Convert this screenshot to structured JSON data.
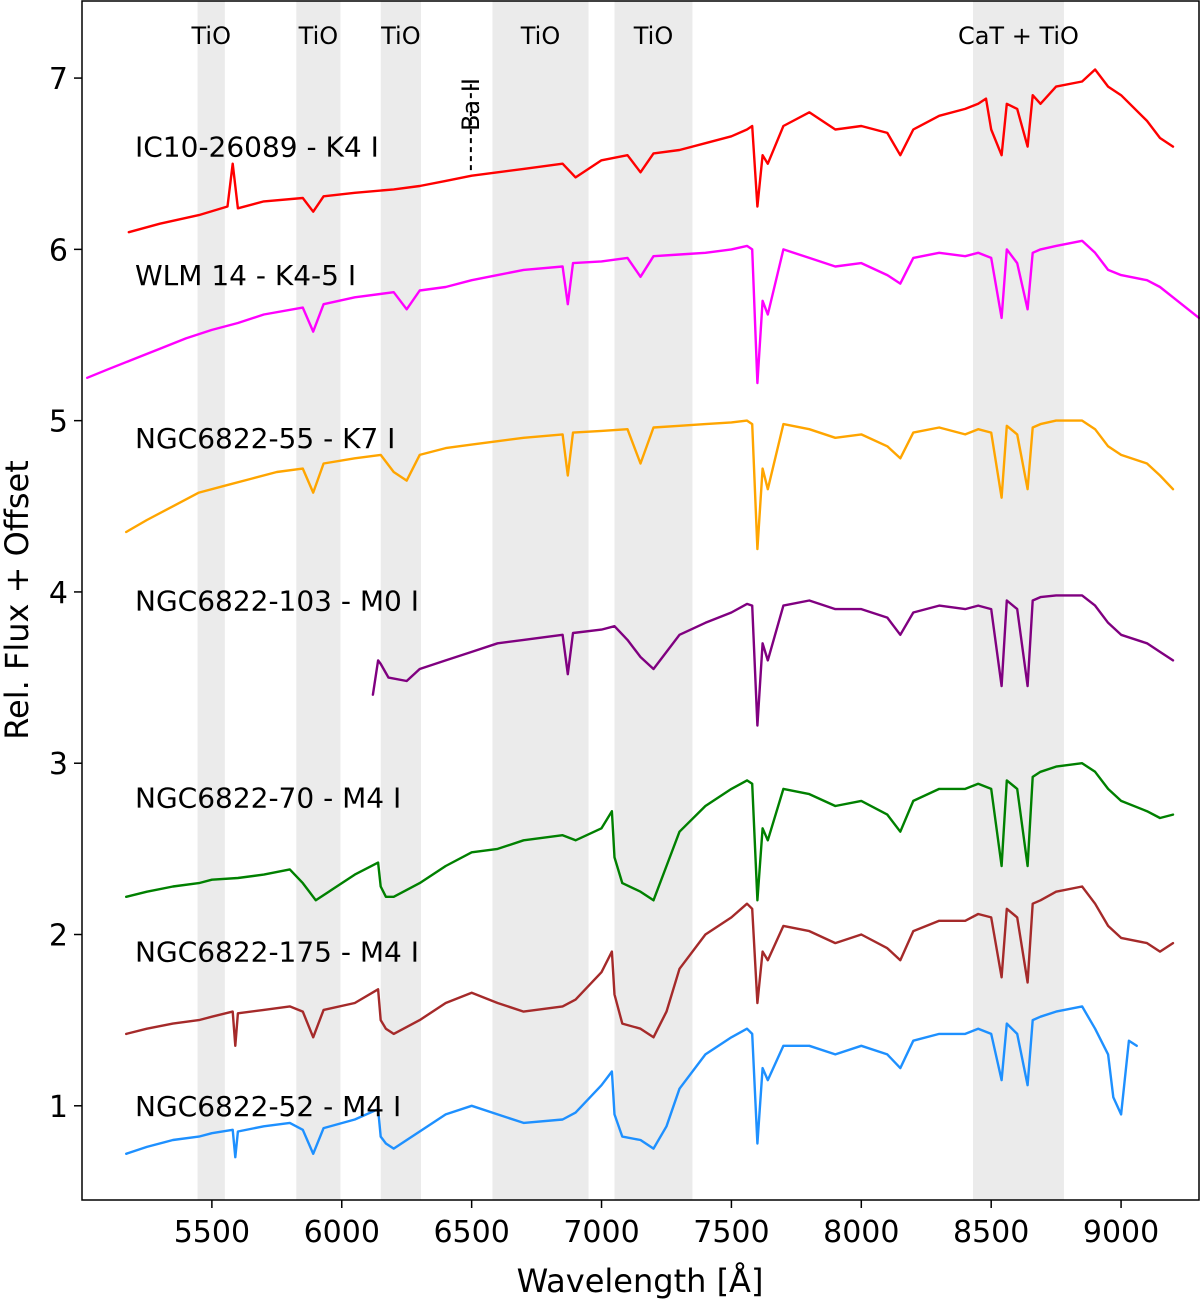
{
  "chart_data": {
    "type": "line",
    "title": "",
    "xlabel": "Wavelength [Å]",
    "ylabel": "Rel. Flux + Offset",
    "xlim": [
      5000,
      9300
    ],
    "ylim": [
      0.45,
      7.45
    ],
    "xticks": [
      5500,
      6000,
      6500,
      7000,
      7500,
      8000,
      8500,
      9000
    ],
    "yticks": [
      1,
      2,
      3,
      4,
      5,
      6,
      7
    ],
    "grid": false,
    "legend": "none",
    "bands": [
      {
        "label": "TiO",
        "x0": 5445,
        "x1": 5550
      },
      {
        "label": "TiO",
        "x0": 5825,
        "x1": 5995
      },
      {
        "label": "TiO",
        "x0": 6150,
        "x1": 6305
      },
      {
        "label": "TiO",
        "x0": 6580,
        "x1": 6950
      },
      {
        "label": "TiO",
        "x0": 7050,
        "x1": 7350
      },
      {
        "label": "CaT + TiO",
        "x0": 8430,
        "x1": 8780
      }
    ],
    "annotations": [
      {
        "text": "Ba II",
        "x": 6497,
        "y_top": 7.0,
        "y_bottom": 6.45
      }
    ],
    "series": [
      {
        "name": "IC10-26089 - K4 I",
        "color": "#ff0000",
        "label_y": 6.6,
        "x": [
          5180,
          5300,
          5450,
          5560,
          5580,
          5600,
          5700,
          5850,
          5890,
          5930,
          6050,
          6200,
          6300,
          6400,
          6500,
          6600,
          6700,
          6850,
          6900,
          7000,
          7100,
          7150,
          7200,
          7300,
          7400,
          7500,
          7560,
          7580,
          7600,
          7620,
          7640,
          7700,
          7800,
          7900,
          8000,
          8100,
          8150,
          8200,
          8300,
          8400,
          8450,
          8480,
          8500,
          8540,
          8560,
          8600,
          8640,
          8660,
          8690,
          8750,
          8850,
          8900,
          8950,
          9000,
          9100,
          9150,
          9200
        ],
        "y": [
          6.1,
          6.15,
          6.2,
          6.25,
          6.5,
          6.24,
          6.28,
          6.3,
          6.22,
          6.31,
          6.33,
          6.35,
          6.37,
          6.4,
          6.43,
          6.45,
          6.47,
          6.5,
          6.42,
          6.52,
          6.55,
          6.45,
          6.56,
          6.58,
          6.62,
          6.66,
          6.7,
          6.72,
          6.25,
          6.55,
          6.5,
          6.72,
          6.8,
          6.7,
          6.72,
          6.68,
          6.55,
          6.7,
          6.78,
          6.82,
          6.85,
          6.88,
          6.7,
          6.55,
          6.85,
          6.82,
          6.6,
          6.9,
          6.85,
          6.95,
          6.98,
          7.05,
          6.95,
          6.9,
          6.75,
          6.65,
          6.6
        ]
      },
      {
        "name": "WLM 14 - K4-5 I",
        "color": "#ff00ff",
        "label_y": 5.85,
        "x": [
          5020,
          5100,
          5200,
          5300,
          5400,
          5500,
          5600,
          5700,
          5850,
          5890,
          5930,
          6050,
          6200,
          6250,
          6300,
          6400,
          6500,
          6600,
          6700,
          6850,
          6870,
          6890,
          7000,
          7100,
          7150,
          7200,
          7300,
          7400,
          7500,
          7560,
          7580,
          7600,
          7620,
          7640,
          7700,
          7800,
          7900,
          8000,
          8100,
          8150,
          8200,
          8300,
          8400,
          8450,
          8500,
          8540,
          8560,
          8600,
          8640,
          8660,
          8690,
          8750,
          8850,
          8900,
          8950,
          9000,
          9100,
          9150,
          9200,
          9300
        ],
        "y": [
          5.25,
          5.3,
          5.36,
          5.42,
          5.48,
          5.53,
          5.57,
          5.62,
          5.66,
          5.52,
          5.68,
          5.72,
          5.75,
          5.65,
          5.76,
          5.78,
          5.82,
          5.85,
          5.88,
          5.9,
          5.68,
          5.92,
          5.93,
          5.95,
          5.84,
          5.96,
          5.97,
          5.98,
          6.0,
          6.02,
          6.0,
          5.22,
          5.7,
          5.62,
          6.0,
          5.95,
          5.9,
          5.92,
          5.85,
          5.8,
          5.95,
          5.98,
          5.96,
          5.98,
          5.95,
          5.6,
          6.0,
          5.92,
          5.65,
          5.98,
          6.0,
          6.02,
          6.05,
          5.98,
          5.88,
          5.85,
          5.82,
          5.78,
          5.72,
          5.6
        ]
      },
      {
        "name": "NGC6822-55 - K7 I",
        "color": "#ffa500",
        "label_y": 4.9,
        "x": [
          5170,
          5250,
          5350,
          5450,
          5550,
          5650,
          5750,
          5850,
          5890,
          5930,
          6050,
          6150,
          6200,
          6250,
          6300,
          6400,
          6500,
          6600,
          6700,
          6850,
          6870,
          6890,
          7000,
          7100,
          7150,
          7200,
          7300,
          7400,
          7500,
          7560,
          7580,
          7600,
          7620,
          7640,
          7700,
          7800,
          7900,
          8000,
          8100,
          8150,
          8200,
          8300,
          8400,
          8450,
          8500,
          8540,
          8560,
          8600,
          8640,
          8660,
          8690,
          8750,
          8850,
          8900,
          8950,
          9000,
          9100,
          9150,
          9200
        ],
        "y": [
          4.35,
          4.42,
          4.5,
          4.58,
          4.62,
          4.66,
          4.7,
          4.72,
          4.58,
          4.75,
          4.78,
          4.8,
          4.7,
          4.65,
          4.8,
          4.84,
          4.86,
          4.88,
          4.9,
          4.92,
          4.68,
          4.93,
          4.94,
          4.95,
          4.75,
          4.96,
          4.97,
          4.98,
          4.99,
          5.0,
          4.98,
          4.25,
          4.72,
          4.6,
          4.98,
          4.95,
          4.9,
          4.92,
          4.85,
          4.78,
          4.93,
          4.96,
          4.92,
          4.95,
          4.93,
          4.55,
          4.97,
          4.92,
          4.6,
          4.96,
          4.98,
          5.0,
          5.0,
          4.95,
          4.85,
          4.8,
          4.75,
          4.68,
          4.6
        ]
      },
      {
        "name": "NGC6822-103 - M0 I",
        "color": "#800080",
        "label_y": 3.95,
        "x": [
          6120,
          6140,
          6150,
          6180,
          6250,
          6300,
          6400,
          6500,
          6600,
          6700,
          6850,
          6870,
          6890,
          7000,
          7050,
          7100,
          7150,
          7200,
          7300,
          7400,
          7500,
          7560,
          7580,
          7600,
          7620,
          7640,
          7700,
          7800,
          7900,
          8000,
          8100,
          8150,
          8200,
          8300,
          8400,
          8450,
          8500,
          8540,
          8560,
          8600,
          8640,
          8660,
          8690,
          8750,
          8850,
          8900,
          8950,
          9000,
          9100,
          9150,
          9200
        ],
        "y": [
          3.4,
          3.6,
          3.58,
          3.5,
          3.48,
          3.55,
          3.6,
          3.65,
          3.7,
          3.72,
          3.75,
          3.52,
          3.76,
          3.78,
          3.8,
          3.72,
          3.62,
          3.55,
          3.75,
          3.82,
          3.88,
          3.93,
          3.92,
          3.22,
          3.7,
          3.6,
          3.92,
          3.95,
          3.9,
          3.9,
          3.85,
          3.75,
          3.88,
          3.92,
          3.9,
          3.92,
          3.9,
          3.45,
          3.95,
          3.9,
          3.45,
          3.95,
          3.97,
          3.98,
          3.98,
          3.92,
          3.82,
          3.75,
          3.7,
          3.65,
          3.6
        ]
      },
      {
        "name": "NGC6822-70 - M4 I",
        "color": "#008000",
        "label_y": 2.8,
        "x": [
          5170,
          5250,
          5350,
          5450,
          5500,
          5600,
          5700,
          5800,
          5850,
          5900,
          5950,
          6050,
          6140,
          6150,
          6170,
          6200,
          6300,
          6400,
          6500,
          6600,
          6700,
          6850,
          6900,
          7000,
          7040,
          7050,
          7080,
          7150,
          7200,
          7250,
          7300,
          7400,
          7500,
          7560,
          7580,
          7600,
          7620,
          7640,
          7700,
          7800,
          7900,
          8000,
          8100,
          8150,
          8200,
          8300,
          8400,
          8450,
          8500,
          8540,
          8560,
          8600,
          8640,
          8660,
          8690,
          8750,
          8850,
          8900,
          8950,
          9000,
          9100,
          9150,
          9200
        ],
        "y": [
          2.22,
          2.25,
          2.28,
          2.3,
          2.32,
          2.33,
          2.35,
          2.38,
          2.3,
          2.2,
          2.25,
          2.35,
          2.42,
          2.28,
          2.22,
          2.22,
          2.3,
          2.4,
          2.48,
          2.5,
          2.55,
          2.58,
          2.55,
          2.62,
          2.72,
          2.45,
          2.3,
          2.25,
          2.2,
          2.4,
          2.6,
          2.75,
          2.85,
          2.9,
          2.88,
          2.2,
          2.62,
          2.55,
          2.85,
          2.82,
          2.75,
          2.78,
          2.7,
          2.6,
          2.78,
          2.85,
          2.85,
          2.88,
          2.85,
          2.4,
          2.9,
          2.85,
          2.4,
          2.92,
          2.95,
          2.98,
          3.0,
          2.95,
          2.85,
          2.78,
          2.72,
          2.68,
          2.7
        ]
      },
      {
        "name": "NGC6822-175 - M4 I",
        "color": "#a52a2a",
        "label_y": 1.9,
        "x": [
          5170,
          5250,
          5350,
          5450,
          5500,
          5580,
          5590,
          5600,
          5700,
          5800,
          5850,
          5890,
          5930,
          6050,
          6140,
          6150,
          6170,
          6200,
          6300,
          6400,
          6500,
          6600,
          6700,
          6850,
          6900,
          7000,
          7040,
          7050,
          7080,
          7150,
          7200,
          7250,
          7300,
          7400,
          7500,
          7560,
          7580,
          7600,
          7620,
          7640,
          7700,
          7800,
          7900,
          8000,
          8100,
          8150,
          8200,
          8300,
          8400,
          8450,
          8500,
          8540,
          8560,
          8600,
          8640,
          8660,
          8690,
          8750,
          8850,
          8900,
          8950,
          9000,
          9100,
          9150,
          9200
        ],
        "y": [
          1.42,
          1.45,
          1.48,
          1.5,
          1.52,
          1.55,
          1.35,
          1.54,
          1.56,
          1.58,
          1.55,
          1.4,
          1.56,
          1.6,
          1.68,
          1.5,
          1.45,
          1.42,
          1.5,
          1.6,
          1.66,
          1.6,
          1.55,
          1.58,
          1.62,
          1.78,
          1.9,
          1.65,
          1.48,
          1.45,
          1.4,
          1.55,
          1.8,
          2.0,
          2.1,
          2.18,
          2.15,
          1.6,
          1.9,
          1.85,
          2.05,
          2.02,
          1.95,
          2.0,
          1.92,
          1.85,
          2.02,
          2.08,
          2.08,
          2.12,
          2.1,
          1.75,
          2.15,
          2.1,
          1.72,
          2.18,
          2.2,
          2.25,
          2.28,
          2.18,
          2.05,
          1.98,
          1.95,
          1.9,
          1.95
        ]
      },
      {
        "name": "NGC6822-52 - M4 I",
        "color": "#1e90ff",
        "label_y": 1.0,
        "x": [
          5170,
          5250,
          5350,
          5450,
          5500,
          5580,
          5590,
          5600,
          5700,
          5800,
          5850,
          5890,
          5930,
          6050,
          6140,
          6150,
          6170,
          6200,
          6300,
          6400,
          6500,
          6600,
          6700,
          6850,
          6900,
          7000,
          7040,
          7050,
          7080,
          7150,
          7200,
          7250,
          7300,
          7400,
          7500,
          7560,
          7580,
          7600,
          7620,
          7640,
          7700,
          7800,
          7900,
          8000,
          8100,
          8150,
          8200,
          8300,
          8400,
          8450,
          8500,
          8540,
          8560,
          8600,
          8640,
          8660,
          8690,
          8750,
          8850,
          8900,
          8950,
          8970,
          9000,
          9030,
          9060
        ],
        "y": [
          0.72,
          0.76,
          0.8,
          0.82,
          0.84,
          0.86,
          0.7,
          0.85,
          0.88,
          0.9,
          0.86,
          0.72,
          0.87,
          0.92,
          0.98,
          0.82,
          0.78,
          0.75,
          0.85,
          0.95,
          1.0,
          0.95,
          0.9,
          0.92,
          0.96,
          1.12,
          1.2,
          0.95,
          0.82,
          0.8,
          0.75,
          0.88,
          1.1,
          1.3,
          1.4,
          1.45,
          1.42,
          0.78,
          1.22,
          1.15,
          1.35,
          1.35,
          1.3,
          1.35,
          1.3,
          1.22,
          1.38,
          1.42,
          1.42,
          1.45,
          1.42,
          1.15,
          1.48,
          1.42,
          1.12,
          1.5,
          1.52,
          1.55,
          1.58,
          1.45,
          1.3,
          1.05,
          0.95,
          1.38,
          1.35
        ]
      }
    ]
  }
}
